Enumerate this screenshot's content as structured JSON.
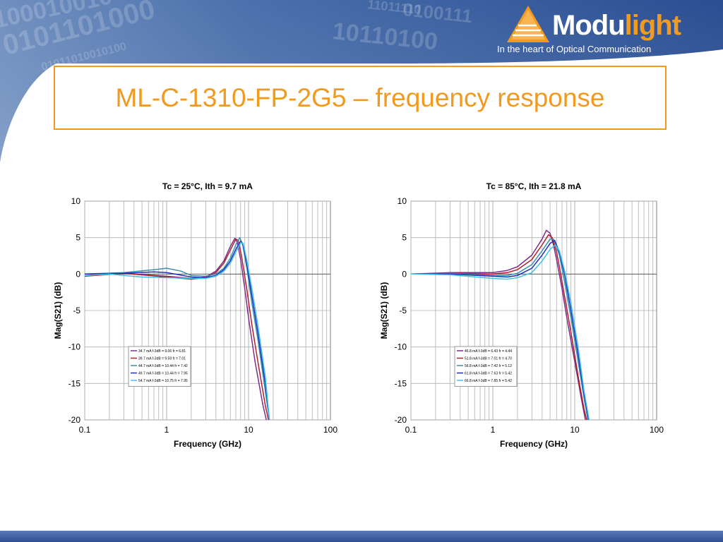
{
  "slide": {
    "title": "ML-C-1310-FP-2G5 – frequency response"
  },
  "logo": {
    "word_part1": "Modu",
    "word_part2": "light",
    "tagline": "In the heart of Optical Communication",
    "colors": {
      "accent": "#f29a1f",
      "band": "#2d5096"
    }
  },
  "watermark": {
    "lines": [
      "100010010",
      "0101101000",
      "01011010010100",
      "0100111",
      "10110100",
      "11011110"
    ]
  },
  "chart_data": [
    {
      "type": "line",
      "title": "Tc = 25°C, Ith = 9.7 mA",
      "xlabel": "Frequency (GHz)",
      "ylabel": "Mag(S21) (dB)",
      "xscale": "log",
      "xlim": [
        0.1,
        100
      ],
      "ylim": [
        -20,
        10
      ],
      "xticks": [
        "0.1",
        "1",
        "10",
        "100"
      ],
      "yticks": [
        "10",
        "5",
        "0",
        "-5",
        "-10",
        "-15",
        "-20"
      ],
      "grid": true,
      "legend_position": "lower-left",
      "series": [
        {
          "name": "34.7 mA f-3dB = 9.06 fr = 6.81",
          "color": "#7b2d8e",
          "points": [
            [
              0.1,
              -0.2
            ],
            [
              0.3,
              0.1
            ],
            [
              1,
              -0.3
            ],
            [
              2,
              -0.6
            ],
            [
              3,
              -0.4
            ],
            [
              4,
              0.4
            ],
            [
              5,
              1.8
            ],
            [
              6,
              3.8
            ],
            [
              6.8,
              4.9
            ],
            [
              7.3,
              4.4
            ],
            [
              8,
              2
            ],
            [
              9,
              -2
            ],
            [
              10,
              -6
            ],
            [
              12,
              -12
            ],
            [
              15,
              -18
            ],
            [
              16.5,
              -20
            ]
          ]
        },
        {
          "name": "39.7 mA f-3dB = 9.59 fr = 7.01",
          "color": "#b0202a",
          "points": [
            [
              0.1,
              -0.3
            ],
            [
              0.3,
              0.1
            ],
            [
              1,
              -0.4
            ],
            [
              2,
              -0.7
            ],
            [
              3,
              -0.5
            ],
            [
              4,
              0.2
            ],
            [
              5,
              1.5
            ],
            [
              6,
              3.3
            ],
            [
              7,
              4.8
            ],
            [
              7.5,
              4.6
            ],
            [
              8.2,
              2.5
            ],
            [
              9.5,
              -2
            ],
            [
              11,
              -7
            ],
            [
              13,
              -12
            ],
            [
              16,
              -18
            ],
            [
              17.5,
              -20
            ]
          ]
        },
        {
          "name": "44.7 mA f-3dB = 10.44 fr = 7.42",
          "color": "#3d8fa8",
          "points": [
            [
              0.1,
              0
            ],
            [
              0.3,
              0.2
            ],
            [
              0.7,
              0.6
            ],
            [
              1,
              0.8
            ],
            [
              1.5,
              0.4
            ],
            [
              2,
              -0.2
            ],
            [
              3,
              -0.3
            ],
            [
              4,
              0
            ],
            [
              5,
              0.8
            ],
            [
              6,
              2.2
            ],
            [
              7,
              4
            ],
            [
              7.8,
              5
            ],
            [
              8.5,
              4
            ],
            [
              9.5,
              1
            ],
            [
              11,
              -4
            ],
            [
              13,
              -9
            ],
            [
              16,
              -16
            ],
            [
              18,
              -20
            ]
          ]
        },
        {
          "name": "49.7 mA f-3dB = 10.44 fr = 7.95",
          "color": "#1f2fbf",
          "points": [
            [
              0.1,
              0
            ],
            [
              0.3,
              0.1
            ],
            [
              0.7,
              0.3
            ],
            [
              1,
              0.2
            ],
            [
              2,
              -0.4
            ],
            [
              3,
              -0.5
            ],
            [
              4,
              -0.2
            ],
            [
              5,
              0.6
            ],
            [
              6,
              1.8
            ],
            [
              7,
              3.4
            ],
            [
              8,
              4.5
            ],
            [
              8.5,
              4.2
            ],
            [
              9.5,
              1.5
            ],
            [
              11,
              -3
            ],
            [
              13,
              -8
            ],
            [
              16,
              -15
            ],
            [
              18,
              -20
            ]
          ]
        },
        {
          "name": "54.7 mA f-3dB = 10.75 fr = 7.95",
          "color": "#3ec4e8",
          "points": [
            [
              0.1,
              -0.2
            ],
            [
              0.2,
              0
            ],
            [
              0.3,
              -0.2
            ],
            [
              0.5,
              -0.4
            ],
            [
              1,
              -0.5
            ],
            [
              2,
              -0.6
            ],
            [
              3,
              -0.6
            ],
            [
              4,
              -0.3
            ],
            [
              5,
              0.4
            ],
            [
              6,
              1.5
            ],
            [
              7,
              3
            ],
            [
              8,
              4.3
            ],
            [
              8.6,
              4.2
            ],
            [
              9.5,
              2
            ],
            [
              11,
              -2
            ],
            [
              13,
              -7
            ],
            [
              16,
              -14
            ],
            [
              18,
              -20
            ]
          ]
        }
      ]
    },
    {
      "type": "line",
      "title": "Tc = 85°C, Ith = 21.8 mA",
      "xlabel": "Frequency (GHz)",
      "ylabel": "Mag(S21) (dB)",
      "xscale": "log",
      "xlim": [
        0.1,
        100
      ],
      "ylim": [
        -20,
        10
      ],
      "xticks": [
        "0.1",
        "1",
        "10",
        "100"
      ],
      "yticks": [
        "10",
        "5",
        "0",
        "-5",
        "-10",
        "-15",
        "-20"
      ],
      "grid": true,
      "legend_position": "lower-left",
      "series": [
        {
          "name": "46.8 mA f-3dB = 6.43 fr = 4.44",
          "color": "#7b2d8e",
          "points": [
            [
              0.1,
              0
            ],
            [
              0.3,
              0.2
            ],
            [
              1,
              0.2
            ],
            [
              1.5,
              0.5
            ],
            [
              2,
              1
            ],
            [
              3,
              2.6
            ],
            [
              4,
              4.8
            ],
            [
              4.5,
              6
            ],
            [
              5,
              5.6
            ],
            [
              5.5,
              4
            ],
            [
              6,
              2
            ],
            [
              7,
              -2
            ],
            [
              8,
              -6
            ],
            [
              10,
              -12
            ],
            [
              12,
              -17
            ],
            [
              13.5,
              -20
            ]
          ]
        },
        {
          "name": "51.8 mA f-3dB = 7.01 fr = 4.70",
          "color": "#b0202a",
          "points": [
            [
              0.1,
              0
            ],
            [
              0.3,
              0.1
            ],
            [
              1,
              0
            ],
            [
              1.5,
              0.2
            ],
            [
              2,
              0.6
            ],
            [
              3,
              2
            ],
            [
              4,
              4
            ],
            [
              4.8,
              5.4
            ],
            [
              5.3,
              5
            ],
            [
              6,
              3
            ],
            [
              6.5,
              1
            ],
            [
              7.5,
              -3
            ],
            [
              9,
              -8
            ],
            [
              11,
              -14
            ],
            [
              13,
              -18.5
            ],
            [
              14,
              -20
            ]
          ]
        },
        {
          "name": "56.8 mA f-3dB = 7.42 fr = 5.12",
          "color": "#3d8fa8",
          "points": [
            [
              0.1,
              0
            ],
            [
              0.3,
              0.1
            ],
            [
              1,
              -0.2
            ],
            [
              1.5,
              -0.2
            ],
            [
              2,
              0.1
            ],
            [
              3,
              1.3
            ],
            [
              4,
              3.2
            ],
            [
              5,
              4.8
            ],
            [
              5.5,
              4.8
            ],
            [
              6.5,
              2.6
            ],
            [
              7.5,
              -1
            ],
            [
              9,
              -6
            ],
            [
              11,
              -12
            ],
            [
              13,
              -17
            ],
            [
              14.5,
              -20
            ]
          ]
        },
        {
          "name": "61.8 mA f-3dB = 7.63 fr = 5.42",
          "color": "#1f2fbf",
          "points": [
            [
              0.1,
              0
            ],
            [
              0.3,
              0
            ],
            [
              1,
              -0.3
            ],
            [
              1.5,
              -0.4
            ],
            [
              2,
              -0.2
            ],
            [
              3,
              0.8
            ],
            [
              4,
              2.6
            ],
            [
              5,
              4.2
            ],
            [
              5.7,
              4.6
            ],
            [
              6.5,
              3
            ],
            [
              7.5,
              0
            ],
            [
              9,
              -5
            ],
            [
              11,
              -11
            ],
            [
              13,
              -16.5
            ],
            [
              14.8,
              -20
            ]
          ]
        },
        {
          "name": "66.8 mA f-3dB = 7.85 fr = 5.42",
          "color": "#3ec4e8",
          "points": [
            [
              0.1,
              0
            ],
            [
              0.3,
              -0.1
            ],
            [
              1,
              -0.6
            ],
            [
              1.5,
              -0.7
            ],
            [
              2,
              -0.5
            ],
            [
              3,
              0.2
            ],
            [
              4,
              1.8
            ],
            [
              5,
              3.4
            ],
            [
              5.8,
              4
            ],
            [
              6.5,
              3.2
            ],
            [
              7.5,
              0.5
            ],
            [
              9,
              -4
            ],
            [
              11,
              -10
            ],
            [
              13,
              -16
            ],
            [
              15,
              -20
            ]
          ]
        }
      ]
    }
  ]
}
